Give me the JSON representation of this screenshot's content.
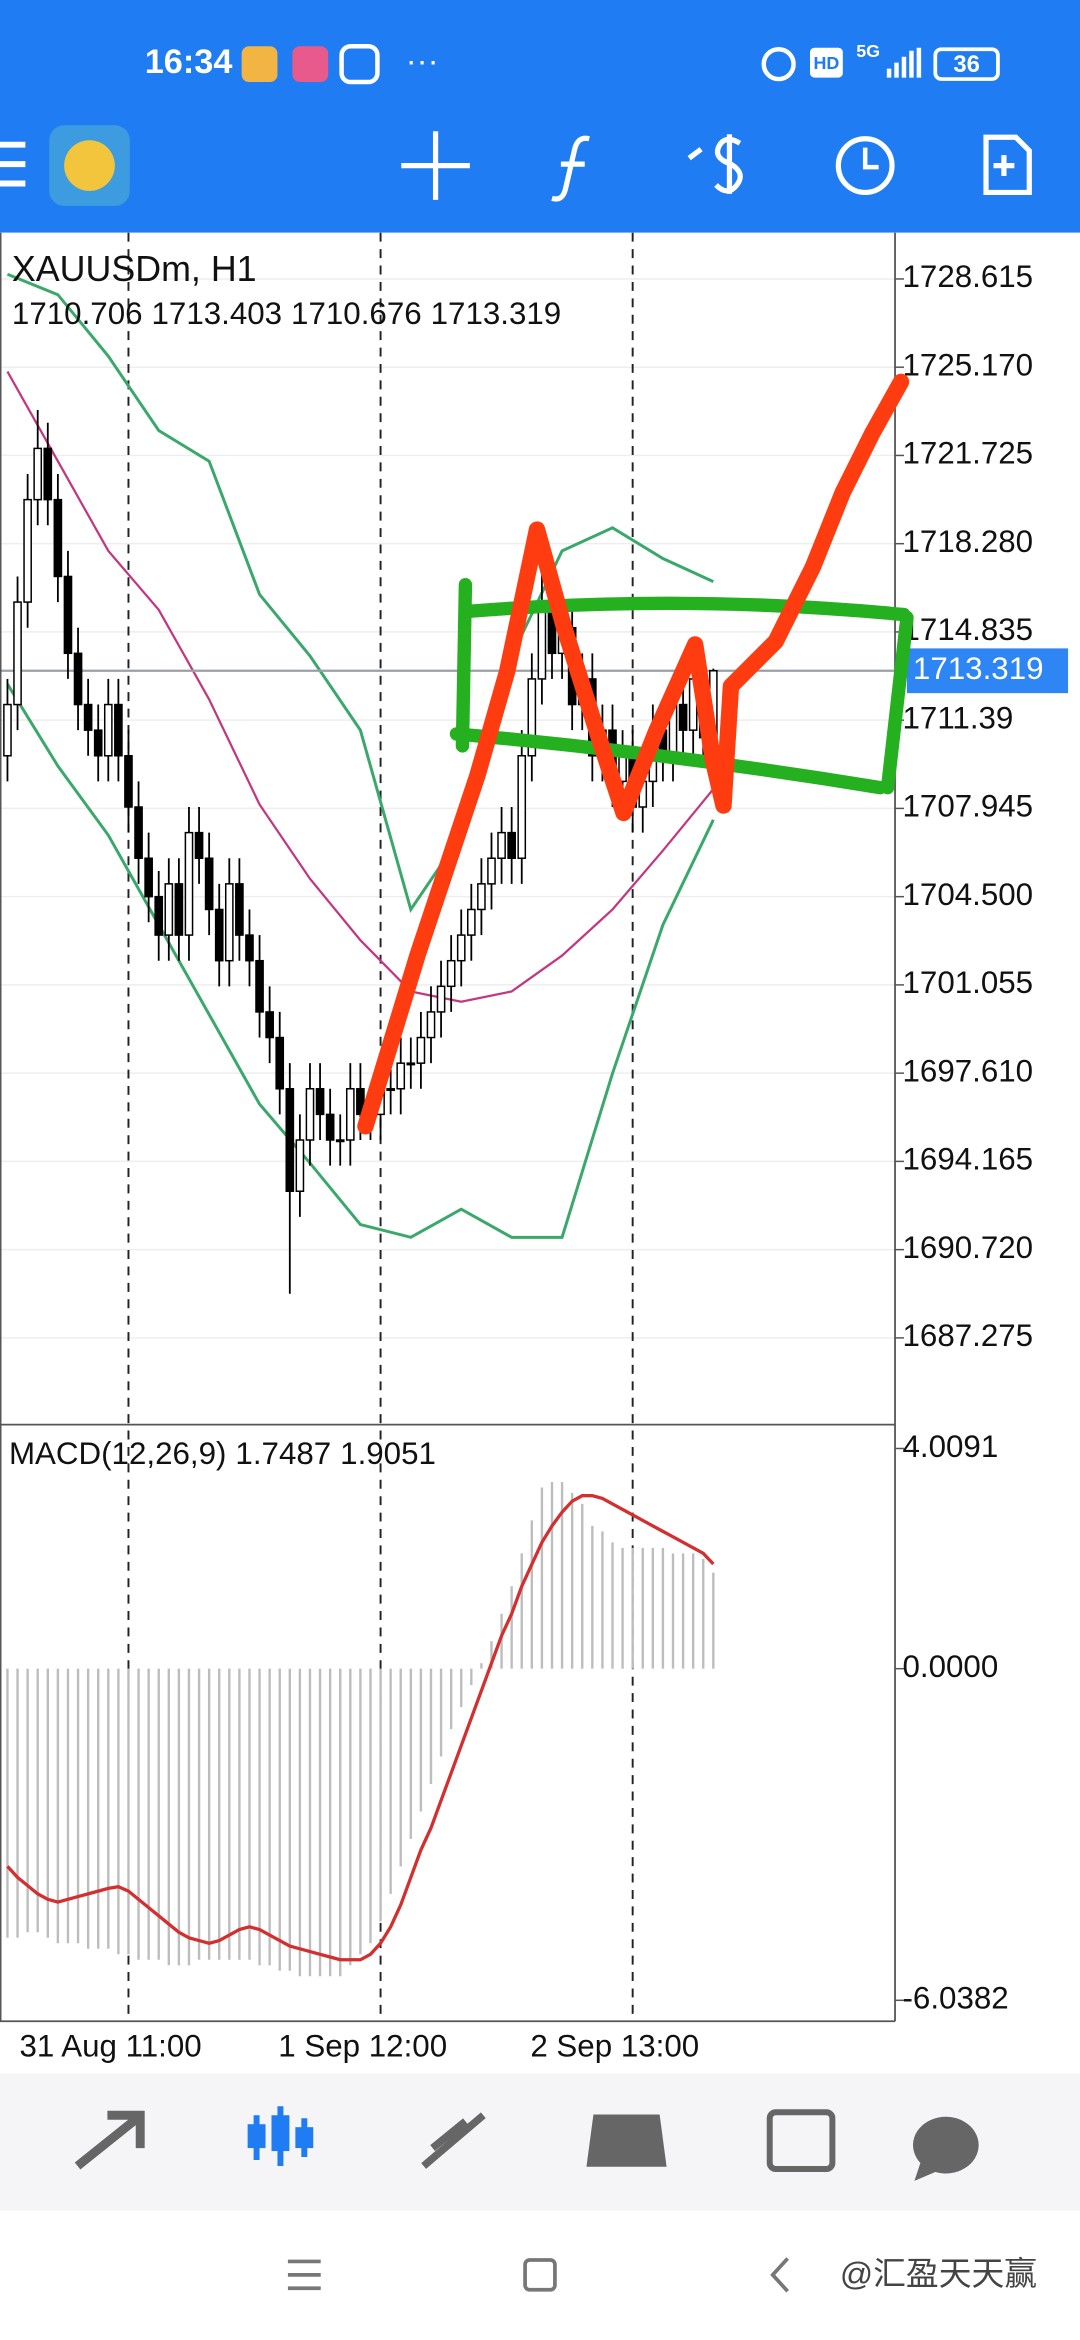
{
  "status_bar": {
    "time": "16:34",
    "more": "···",
    "network": "5G",
    "hd": "HD",
    "battery": "36"
  },
  "watermark": "@汇盈天天赢",
  "chart_data": [
    {
      "type": "candlestick",
      "title": "XAUUSDm, H1",
      "open": [
        1710,
        1712,
        1716,
        1720,
        1722,
        1720,
        1717,
        1714,
        1712,
        1711,
        1710,
        1712,
        1710,
        1708,
        1706,
        1704.5,
        1703,
        1705,
        1703,
        1707,
        1706,
        1704,
        1702,
        1705,
        1703,
        1702,
        1700,
        1699,
        1697,
        1693,
        1695,
        1697,
        1696,
        1695,
        1695,
        1697,
        1696,
        1696,
        1697,
        1697,
        1698,
        1698,
        1699,
        1700,
        1701,
        1702,
        1703,
        1704,
        1705,
        1706,
        1707,
        1706,
        1710,
        1713,
        1716,
        1714,
        1715,
        1712,
        1713,
        1710,
        1711,
        1709,
        1710,
        1708,
        1709,
        1711,
        1710,
        1712,
        1711,
        1713,
        1710.706
      ],
      "high": [
        1713,
        1717,
        1721,
        1723.5,
        1723,
        1721,
        1718,
        1715,
        1713,
        1712,
        1713,
        1713,
        1711,
        1709,
        1707,
        1705.5,
        1706,
        1706,
        1708,
        1708,
        1707,
        1705,
        1706,
        1706,
        1704,
        1703,
        1701,
        1700,
        1698,
        1696,
        1698,
        1698,
        1697,
        1696,
        1698,
        1698,
        1697,
        1698,
        1698,
        1699,
        1699,
        1700,
        1701,
        1702,
        1703,
        1704,
        1705,
        1706,
        1707,
        1708,
        1708,
        1711,
        1714,
        1718,
        1717,
        1716,
        1716,
        1714,
        1714,
        1712,
        1712,
        1711,
        1711,
        1710,
        1712,
        1712,
        1713,
        1713,
        1714,
        1714,
        1713.403
      ],
      "low": [
        1709,
        1711,
        1715,
        1719,
        1719,
        1716,
        1713,
        1711,
        1710,
        1709,
        1709,
        1709,
        1707,
        1705,
        1703.5,
        1702,
        1702,
        1702,
        1702,
        1705,
        1703,
        1701,
        1701,
        1702,
        1701,
        1699,
        1698,
        1696,
        1689,
        1692,
        1694,
        1695,
        1694,
        1694,
        1694,
        1695,
        1695,
        1695,
        1696,
        1696,
        1697,
        1697,
        1698,
        1699,
        1700,
        1701,
        1702,
        1703,
        1704,
        1705,
        1705,
        1705,
        1709,
        1712,
        1713,
        1713,
        1711,
        1711,
        1709,
        1709,
        1708,
        1708,
        1707,
        1707,
        1708,
        1709,
        1709,
        1710,
        1710,
        1709.706,
        1710.676
      ],
      "close": [
        1712,
        1716,
        1720,
        1722,
        1720,
        1717,
        1714,
        1712,
        1711,
        1710,
        1712,
        1710,
        1708,
        1706,
        1704.5,
        1703,
        1705,
        1703,
        1707,
        1706,
        1704,
        1702,
        1705,
        1703,
        1702,
        1700,
        1699,
        1697,
        1693,
        1695,
        1697,
        1696,
        1695,
        1695,
        1697,
        1696,
        1696,
        1697,
        1697,
        1698,
        1698,
        1699,
        1700,
        1701,
        1702,
        1703,
        1704,
        1705,
        1706,
        1707,
        1706,
        1710,
        1713,
        1716,
        1714,
        1715,
        1712,
        1713,
        1710,
        1711,
        1709,
        1710,
        1708,
        1709,
        1711,
        1710,
        1712,
        1711,
        1713,
        1710.706,
        1713.319
      ],
      "up_color": "#ffffff",
      "down_color": "#000000",
      "bands": {
        "x": [
          0,
          5,
          10,
          15,
          20,
          25,
          30,
          35,
          40,
          45,
          50,
          55,
          60,
          65,
          70
        ],
        "upper": [
          1728.8,
          1728,
          1725.6,
          1722.7,
          1721.5,
          1716.3,
          1713.9,
          1711,
          1704,
          1706.9,
          1713.9,
          1718,
          1718.9,
          1717.7,
          1716.8
        ],
        "lower": [
          1712.8,
          1709.6,
          1706.9,
          1703.4,
          1699.9,
          1696.4,
          1694.1,
          1691.7,
          1691.2,
          1692.3,
          1691.2,
          1691.2,
          1697.6,
          1703.4,
          1707.5
        ],
        "ma": [
          1725,
          1721.5,
          1718,
          1715.7,
          1712.2,
          1708.1,
          1705.2,
          1702.8,
          1700.8,
          1700.4,
          1700.8,
          1702.2,
          1704,
          1706.3,
          1708.7
        ],
        "band_color": "#3aa86b",
        "ma_color": "#c2377f"
      },
      "ylim": [
        1683.89,
        1730.42
      ],
      "yticks": [
        1728.615,
        {
          "value": 1725.17,
          "label": "1725.170"
        },
        1721.725,
        {
          "value": 1718.28,
          "label": "1718.280"
        },
        1714.835,
        1711.39,
        1707.945,
        {
          "value": 1704.5,
          "label": "1704.500"
        },
        1701.055,
        {
          "value": 1697.61,
          "label": "1697.610"
        },
        1694.165,
        {
          "value": 1690.72,
          "label": "1690.720"
        },
        1687.275
      ],
      "xticks": [
        {
          "value": 12,
          "label": "31 Aug 11:00"
        },
        {
          "value": 37,
          "label": "1 Sep 12:00"
        },
        {
          "value": 62,
          "label": "2 Sep 13:00"
        }
      ],
      "grid": true,
      "price_box_color": "#2e86f5"
    },
    {
      "type": "macd",
      "title": "MACD(12,26,9)",
      "histogram": [
        -4.9,
        -4.9,
        -4.8,
        -4.8,
        -4.9,
        -5.0,
        -5.0,
        -5.0,
        -5.1,
        -5.1,
        -5.1,
        -5.2,
        -5.2,
        -5.3,
        -5.3,
        -5.3,
        -5.4,
        -5.4,
        -5.4,
        -5.3,
        -5.3,
        -5.3,
        -5.3,
        -5.3,
        -5.3,
        -5.4,
        -5.4,
        -5.5,
        -5.5,
        -5.6,
        -5.6,
        -5.6,
        -5.6,
        -5.6,
        -5.4,
        -5.2,
        -5.0,
        -4.6,
        -4.1,
        -3.6,
        -3.1,
        -2.6,
        -2.1,
        -1.6,
        -1.1,
        -0.7,
        -0.3,
        0.1,
        0.5,
        1.0,
        1.5,
        2.1,
        2.7,
        3.3,
        3.4,
        3.4,
        3.2,
        3.0,
        2.6,
        2.5,
        2.3,
        2.2,
        2.2,
        2.2,
        2.2,
        2.2,
        2.1,
        2.1,
        2.1,
        2.0,
        1.7487
      ],
      "signal": [
        -3.6,
        -3.8,
        -3.95,
        -4.1,
        -4.2,
        -4.25,
        -4.2,
        -4.15,
        -4.1,
        -4.05,
        -4.0,
        -3.97,
        -4.05,
        -4.2,
        -4.35,
        -4.5,
        -4.65,
        -4.8,
        -4.9,
        -4.95,
        -5.0,
        -4.95,
        -4.85,
        -4.75,
        -4.7,
        -4.75,
        -4.85,
        -4.95,
        -5.05,
        -5.1,
        -5.15,
        -5.2,
        -5.25,
        -5.3,
        -5.3,
        -5.3,
        -5.2,
        -5.0,
        -4.7,
        -4.3,
        -3.8,
        -3.3,
        -2.9,
        -2.4,
        -1.9,
        -1.4,
        -0.9,
        -0.4,
        0.1,
        0.6,
        1.0,
        1.5,
        1.9,
        2.3,
        2.6,
        2.85,
        3.05,
        3.15,
        3.15,
        3.1,
        3.0,
        2.9,
        2.8,
        2.7,
        2.6,
        2.5,
        2.4,
        2.3,
        2.2,
        2.1,
        1.9051
      ],
      "ylim": [
        -6.42,
        4.39
      ],
      "yticks": [
        4.0091,
        {
          "value": 0,
          "label": "0.0000"
        },
        -6.0382
      ],
      "histogram_color": "#bdbdbd",
      "signal_color": "#d32f2f"
    }
  ]
}
